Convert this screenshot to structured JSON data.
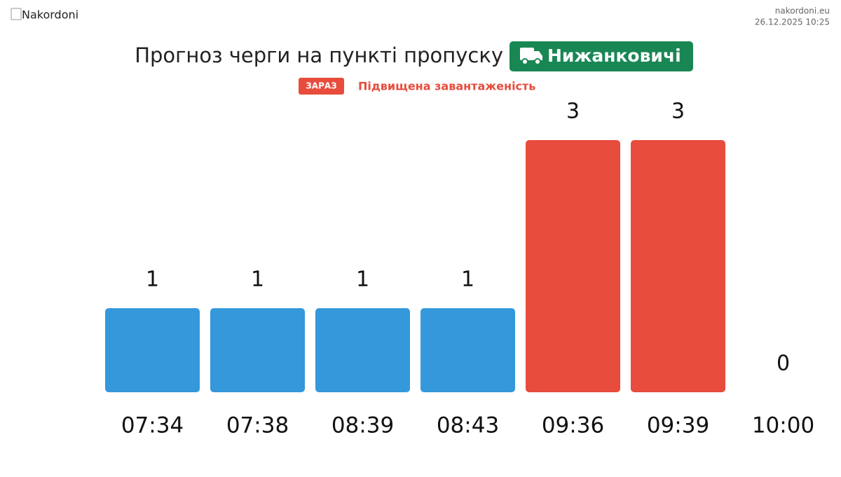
{
  "header": {
    "logo": "Nakordoni",
    "site": "nakordoni.eu",
    "datetime": "26.12.2025 10:25"
  },
  "chart_data": {
    "type": "bar",
    "title": "Прогноз черги на пункті пропуску",
    "checkpoint": "Нижанковичі",
    "status_badge": "ЗАРАЗ",
    "status": "Підвищена завантаженість",
    "categories": [
      "07:34",
      "07:38",
      "08:39",
      "08:43",
      "09:36",
      "09:39",
      "10:00"
    ],
    "values": [
      1,
      1,
      1,
      1,
      3,
      3,
      0
    ],
    "colors": [
      "#3498db",
      "#3498db",
      "#3498db",
      "#3498db",
      "#e74c3c",
      "#e74c3c",
      "#3498db"
    ]
  }
}
